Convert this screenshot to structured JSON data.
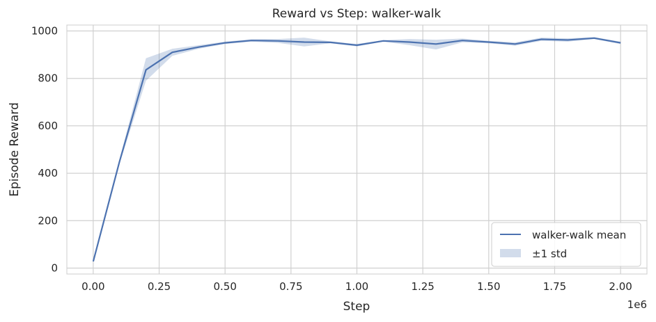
{
  "chart_data": {
    "type": "line",
    "title": "Reward vs Step: walker-walk",
    "xlabel": "Step",
    "ylabel": "Episode Reward",
    "x_offset_label": "1e6",
    "xlim": [
      -0.1,
      2.1
    ],
    "ylim": [
      -25,
      1025
    ],
    "x_ticks": [
      0.0,
      0.25,
      0.5,
      0.75,
      1.0,
      1.25,
      1.5,
      1.75,
      2.0
    ],
    "x_tick_labels": [
      "0.00",
      "0.25",
      "0.50",
      "0.75",
      "1.00",
      "1.25",
      "1.50",
      "1.75",
      "2.00"
    ],
    "y_ticks": [
      0,
      200,
      400,
      600,
      800,
      1000
    ],
    "y_tick_labels": [
      "0",
      "200",
      "400",
      "600",
      "800",
      "1000"
    ],
    "grid": true,
    "legend_position": "bottom-right",
    "series": [
      {
        "name": "walker-walk mean",
        "color": "#4c72b0",
        "x": [
          0.0,
          0.1,
          0.2,
          0.3,
          0.4,
          0.5,
          0.6,
          0.7,
          0.8,
          0.9,
          1.0,
          1.1,
          1.2,
          1.3,
          1.4,
          1.5,
          1.6,
          1.7,
          1.8,
          1.9,
          2.0
        ],
        "values": [
          28,
          450,
          836,
          910,
          932,
          950,
          960,
          958,
          953,
          952,
          940,
          958,
          953,
          945,
          960,
          953,
          945,
          965,
          962,
          970,
          950
        ],
        "std_lower": [
          28,
          440,
          790,
          895,
          925,
          945,
          955,
          950,
          935,
          948,
          935,
          955,
          940,
          922,
          952,
          948,
          938,
          958,
          955,
          966,
          945
        ],
        "std_upper": [
          28,
          460,
          885,
          925,
          940,
          955,
          965,
          966,
          972,
          956,
          945,
          961,
          966,
          963,
          968,
          958,
          952,
          972,
          969,
          974,
          955
        ]
      }
    ],
    "band": {
      "name": "±1 std",
      "color": "#4c72b0",
      "opacity": 0.25
    }
  }
}
